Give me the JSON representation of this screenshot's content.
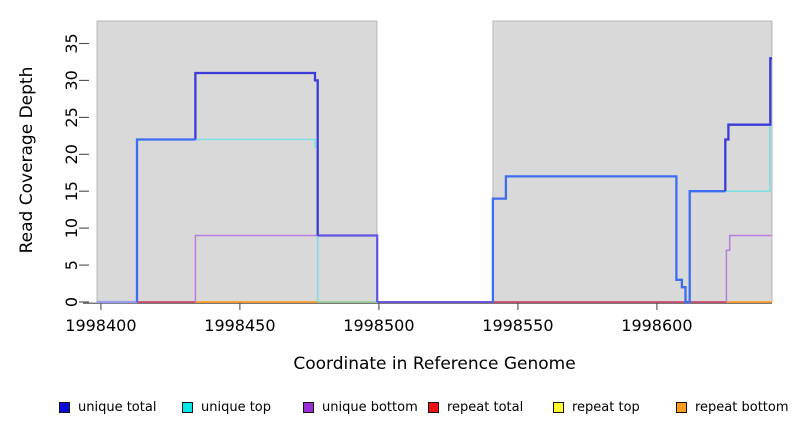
{
  "chart_data": {
    "type": "line",
    "title": "",
    "xlabel": "Coordinate in Reference Genome",
    "ylabel": "Read Coverage Depth",
    "xlim": [
      1998398.6,
      1998641.4
    ],
    "ylim": [
      0,
      38
    ],
    "xticks": [
      1998400,
      1998450,
      1998500,
      1998550,
      1998600
    ],
    "yticks": [
      0,
      5,
      10,
      15,
      20,
      25,
      30,
      35
    ],
    "axis_color": "#4d4d4d",
    "plot_bg": "#ffffff",
    "shaded_bands": {
      "color": "#d9d9d9",
      "border": "#ababab",
      "regions": [
        [
          1998398.6,
          1998499.3
        ],
        [
          1998541,
          1998641.4
        ]
      ]
    },
    "series": [
      {
        "name": "unique total",
        "color": "#0b0bdc",
        "steps": [
          [
            1998400,
            0
          ],
          [
            1998413,
            22
          ],
          [
            1998434,
            31
          ],
          [
            1998477,
            30
          ],
          [
            1998478,
            9
          ],
          [
            1998500,
            0
          ],
          [
            1998541,
            14
          ],
          [
            1998546,
            17
          ],
          [
            1998607,
            3
          ],
          [
            1998609,
            2
          ],
          [
            1998610,
            0
          ],
          [
            1998612,
            15
          ],
          [
            1998625,
            22
          ],
          [
            1998626,
            24
          ],
          [
            1998641,
            33
          ]
        ]
      },
      {
        "name": "unique top",
        "color": "#00e7ea",
        "steps": [
          [
            1998400,
            0
          ],
          [
            1998413,
            22
          ],
          [
            1998477,
            21
          ],
          [
            1998478,
            0
          ],
          [
            1998541,
            14
          ],
          [
            1998546,
            17
          ],
          [
            1998607,
            3
          ],
          [
            1998609,
            2
          ],
          [
            1998610,
            0
          ],
          [
            1998612,
            15
          ],
          [
            1998641,
            24
          ]
        ]
      },
      {
        "name": "unique bottom",
        "color": "#9a2fd6",
        "steps": [
          [
            1998400,
            0
          ],
          [
            1998434,
            9
          ],
          [
            1998500,
            0
          ],
          [
            1998625,
            7
          ],
          [
            1998626,
            9
          ]
        ]
      },
      {
        "name": "repeat total",
        "color": "#ee1111",
        "steps": [
          [
            1998400,
            0
          ]
        ]
      },
      {
        "name": "repeat top",
        "color": "#ffff2e",
        "steps": [
          [
            1998400,
            0
          ]
        ]
      },
      {
        "name": "repeat bottom",
        "color": "#ff9d1e",
        "steps": [
          [
            1998400,
            0
          ]
        ]
      }
    ],
    "rendered_segments": [
      {
        "name": "baseline-blend-left",
        "color": "#9a9ced",
        "width": 2.2,
        "points": [
          [
            1998398.6,
            0
          ],
          [
            1998413,
            0
          ]
        ]
      },
      {
        "name": "baseline-rose-left",
        "color": "#d04a6e",
        "width": 1.8,
        "points": [
          [
            1998413,
            0
          ],
          [
            1998434,
            0
          ]
        ]
      },
      {
        "name": "baseline-orange-left",
        "color": "#ff9d2f",
        "width": 1.8,
        "points": [
          [
            1998434,
            0
          ],
          [
            1998478,
            0
          ]
        ]
      },
      {
        "name": "baseline-green",
        "color": "#9cd09e",
        "width": 1.8,
        "points": [
          [
            1998478,
            0
          ],
          [
            1998499.4,
            0
          ]
        ]
      },
      {
        "name": "baseline-indigo-gap",
        "color": "#6a57dd",
        "width": 2.0,
        "points": [
          [
            1998499.4,
            0
          ],
          [
            1998541,
            0
          ]
        ]
      },
      {
        "name": "baseline-rose-right",
        "color": "#d04a6e",
        "width": 1.8,
        "points": [
          [
            1998541,
            0
          ],
          [
            1998625,
            0
          ]
        ]
      },
      {
        "name": "baseline-orange-right",
        "color": "#ff9d2f",
        "width": 1.8,
        "points": [
          [
            1998625,
            0
          ],
          [
            1998641.4,
            0
          ]
        ]
      },
      {
        "name": "unique-top-left",
        "color": "#7adfe3",
        "width": 1.5,
        "points": [
          [
            1998434,
            22
          ],
          [
            1998477,
            22
          ],
          [
            1998477,
            21
          ],
          [
            1998478,
            21
          ],
          [
            1998478,
            0
          ]
        ]
      },
      {
        "name": "unique-bottom-left",
        "color": "#b77ee2",
        "width": 1.5,
        "points": [
          [
            1998434,
            0
          ],
          [
            1998434,
            9
          ],
          [
            1998478,
            9
          ]
        ]
      },
      {
        "name": "unique-total-nine",
        "color": "#6055e5",
        "width": 2.2,
        "points": [
          [
            1998478,
            9
          ],
          [
            1998499.4,
            9
          ],
          [
            1998499.4,
            0
          ]
        ]
      },
      {
        "name": "unique-total-left-high",
        "color": "#3b3bd8",
        "width": 2.3,
        "points": [
          [
            1998434,
            22
          ],
          [
            1998434,
            31
          ],
          [
            1998477,
            31
          ],
          [
            1998477,
            30
          ],
          [
            1998478,
            30
          ],
          [
            1998478,
            9
          ]
        ]
      },
      {
        "name": "unique-total-left-rise",
        "color": "#3d6ef2",
        "width": 2.3,
        "points": [
          [
            1998413,
            0
          ],
          [
            1998413,
            22
          ],
          [
            1998434,
            22
          ]
        ]
      },
      {
        "name": "unique-bottom-right",
        "color": "#b77ee2",
        "width": 1.5,
        "points": [
          [
            1998625,
            0
          ],
          [
            1998625,
            7
          ],
          [
            1998626.2,
            7
          ],
          [
            1998626.2,
            9
          ],
          [
            1998641.4,
            9
          ]
        ]
      },
      {
        "name": "unique-top-right",
        "color": "#7adfe3",
        "width": 1.5,
        "points": [
          [
            1998624.6,
            15
          ],
          [
            1998640.6,
            15
          ],
          [
            1998640.6,
            24
          ],
          [
            1998641.4,
            24
          ]
        ]
      },
      {
        "name": "unique-total-right-main",
        "color": "#3d6ef2",
        "width": 2.3,
        "points": [
          [
            1998541,
            0
          ],
          [
            1998541,
            14
          ],
          [
            1998545.7,
            14
          ],
          [
            1998545.7,
            17
          ],
          [
            1998607,
            17
          ],
          [
            1998607,
            3
          ],
          [
            1998609,
            3
          ],
          [
            1998609,
            2
          ],
          [
            1998610.3,
            2
          ],
          [
            1998610.3,
            0
          ],
          [
            1998611.8,
            0
          ],
          [
            1998611.8,
            15
          ],
          [
            1998624.6,
            15
          ]
        ]
      },
      {
        "name": "unique-total-right-high",
        "color": "#3b3bd8",
        "width": 2.3,
        "points": [
          [
            1998624.6,
            15
          ],
          [
            1998624.6,
            22
          ],
          [
            1998625.7,
            22
          ],
          [
            1998625.7,
            24
          ],
          [
            1998640.8,
            24
          ],
          [
            1998640.8,
            33
          ],
          [
            1998641.4,
            33
          ]
        ]
      }
    ]
  },
  "legend": {
    "items": [
      {
        "label": "unique total",
        "color": "#0b0bdc"
      },
      {
        "label": "unique top",
        "color": "#00e7ea"
      },
      {
        "label": "unique bottom",
        "color": "#9a2fd6"
      },
      {
        "label": "repeat total",
        "color": "#ee1111"
      },
      {
        "label": "repeat top",
        "color": "#ffff2e"
      },
      {
        "label": "repeat bottom",
        "color": "#ff9d1e"
      }
    ]
  }
}
